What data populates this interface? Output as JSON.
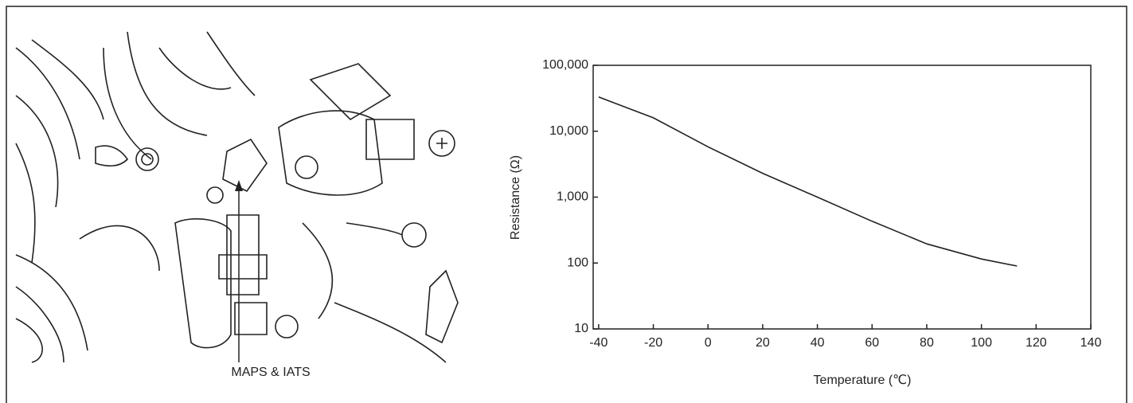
{
  "illustration": {
    "label": "MAPS & IATS"
  },
  "chart_data": {
    "type": "line",
    "xlabel": "Temperature (℃)",
    "ylabel": "Resistance (Ω)",
    "x": [
      -40,
      -20,
      0,
      20,
      40,
      60,
      80,
      100,
      113
    ],
    "values": [
      33000,
      16000,
      5800,
      2300,
      1000,
      430,
      195,
      115,
      90
    ],
    "color": "#222222",
    "log_y": true,
    "xlim": [
      -42,
      140
    ],
    "ylim": [
      10,
      100000
    ],
    "xticks": [
      -40,
      -20,
      0,
      20,
      40,
      60,
      80,
      100,
      120,
      140
    ],
    "yticks": [
      {
        "value": 100000,
        "label": "100,000"
      },
      {
        "value": 10000,
        "label": "10,000"
      },
      {
        "value": 1000,
        "label": "1,000"
      },
      100,
      10
    ]
  }
}
